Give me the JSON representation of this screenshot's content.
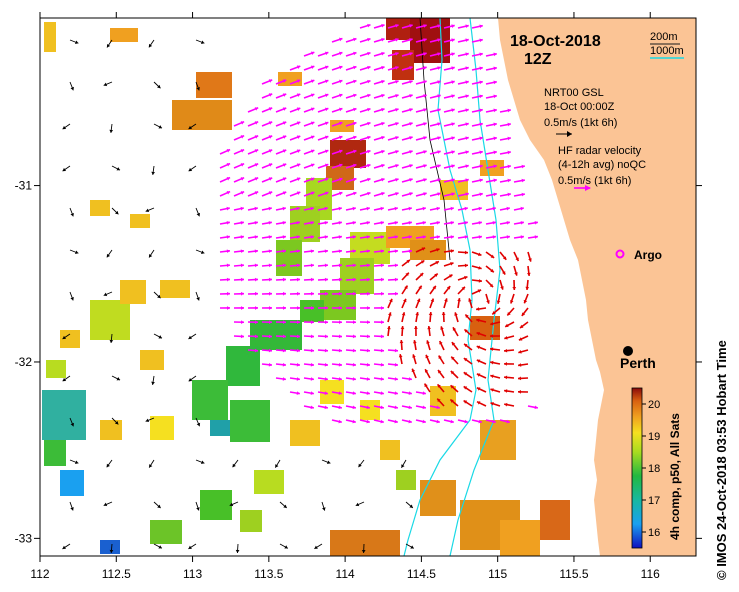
{
  "header": {
    "date": "18-Oct-2018",
    "time": "12Z"
  },
  "depth_legend": {
    "contour_200": "200m",
    "contour_1000": "1000m",
    "color_200": "#1a1a1a",
    "color_1000": "#19d9e6"
  },
  "legend": {
    "model_title": "NRT00 GSL",
    "model_time": "18-Oct 00:00Z",
    "model_scale": "0.5m/s (1kt 6h)",
    "radar_line1": "HF radar velocity",
    "radar_line2": "(4-12h avg) noQC",
    "radar_scale": "0.5m/s (1kt 6h)",
    "model_arrow_color": "#000000",
    "radar_arrow_color": "#ff00ff",
    "radar_strong_color": "#e00000"
  },
  "places": {
    "argo": "Argo",
    "perth": "Perth"
  },
  "axes": {
    "x_ticks": [
      "112",
      "112.5",
      "113",
      "113.5",
      "114",
      "114.5",
      "115",
      "115.5",
      "116"
    ],
    "y_ticks": [
      "-31",
      "-32",
      "-33"
    ],
    "lon_range": [
      112,
      116.3
    ],
    "lat_range": [
      -33.1,
      -30.05
    ]
  },
  "colorbar": {
    "label": "4h comp, p50, All Sats",
    "ticks": [
      "20",
      "19",
      "18",
      "17",
      "16"
    ],
    "range": [
      15.5,
      20.5
    ]
  },
  "credit": "© IMOS 24-Oct-2018 03:53 Hobart Time",
  "colors": {
    "land": "#fbc495",
    "sst_warm": "#c0400a",
    "sst_cool": "#1010c0"
  }
}
